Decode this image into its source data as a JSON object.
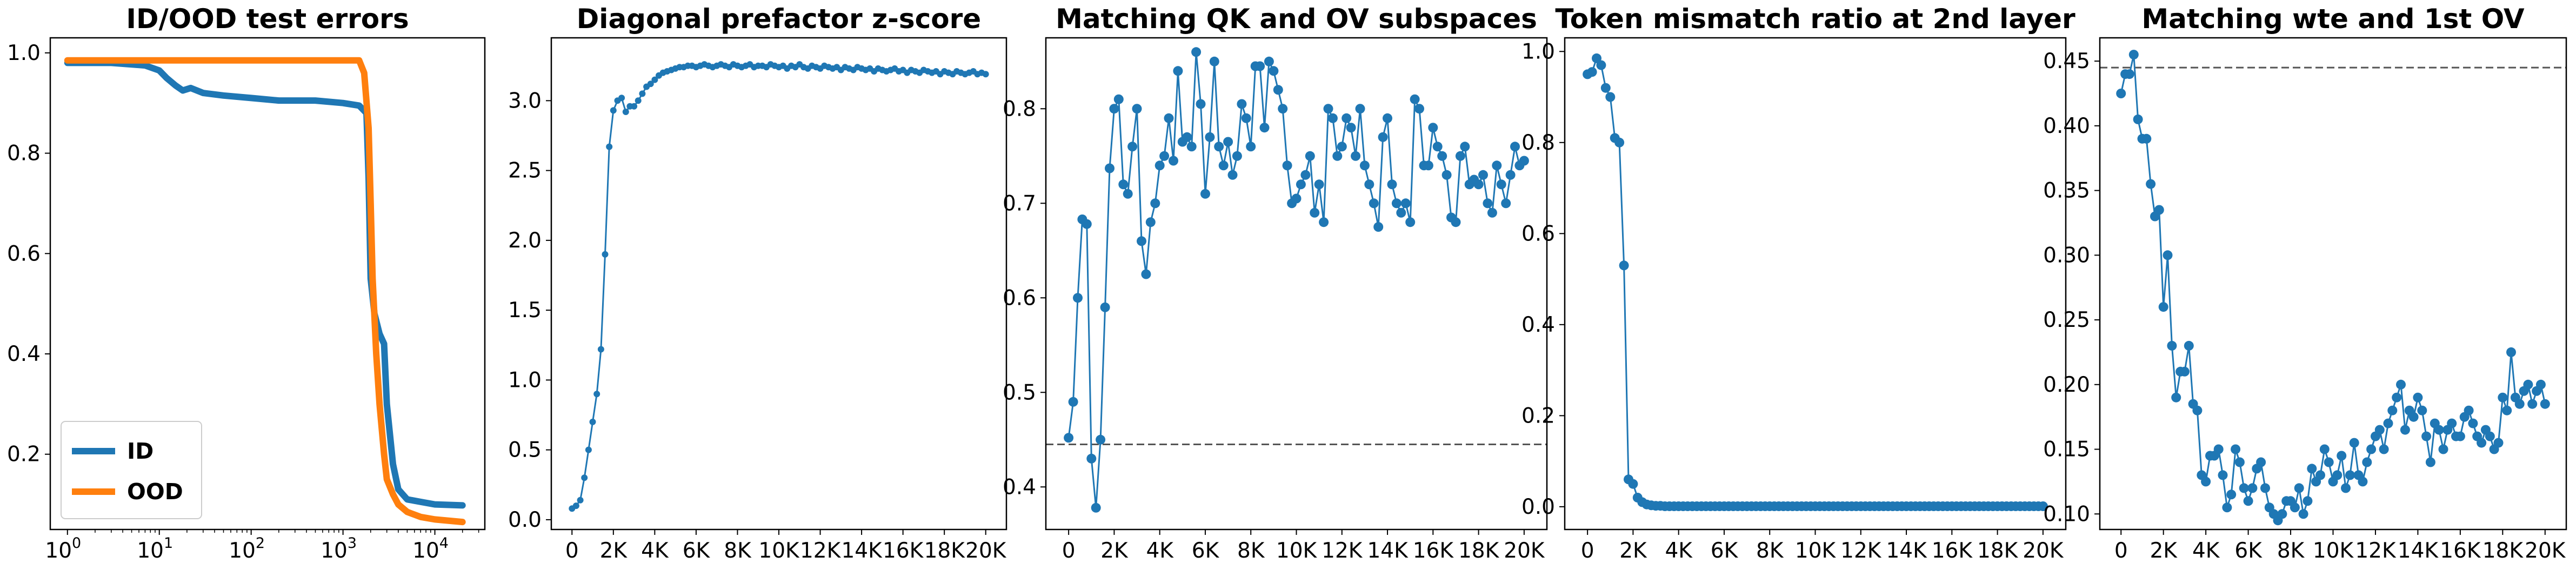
{
  "figure": {
    "background": "#ffffff"
  },
  "colors": {
    "blue": "#1f77b4",
    "orange": "#ff7f0e",
    "ref_line": "#555555"
  },
  "chart_data": [
    {
      "type": "line",
      "title": "ID/OOD test errors",
      "xlabel": "",
      "ylabel": "",
      "xscale": "log",
      "xlim": [
        0.65,
        35000
      ],
      "ylim": [
        0.05,
        1.03
      ],
      "yticks": [
        0.2,
        0.4,
        0.6,
        0.8,
        1.0
      ],
      "ytick_labels": [
        "0.2",
        "0.4",
        "0.6",
        "0.8",
        "1.0"
      ],
      "xticks": [
        1,
        10,
        100,
        1000,
        10000
      ],
      "xtick_labels": [
        "10",
        "10",
        "10",
        "10",
        "10"
      ],
      "xtick_exponents": [
        "0",
        "1",
        "2",
        "3",
        "4"
      ],
      "grid": false,
      "legend": {
        "position": "lower-left",
        "entries": [
          "ID",
          "OOD"
        ]
      },
      "series": [
        {
          "name": "ID",
          "color": "#1f77b4",
          "x": [
            1,
            3,
            7,
            10,
            12,
            15,
            18,
            22,
            30,
            50,
            100,
            200,
            500,
            1000,
            1500,
            1800,
            1900,
            2000,
            2200,
            2500,
            2800,
            3000,
            3500,
            4000,
            5000,
            7000,
            10000,
            20000
          ],
          "y": [
            0.98,
            0.98,
            0.975,
            0.965,
            0.95,
            0.935,
            0.925,
            0.93,
            0.92,
            0.915,
            0.91,
            0.905,
            0.905,
            0.9,
            0.895,
            0.88,
            0.75,
            0.55,
            0.48,
            0.44,
            0.42,
            0.3,
            0.18,
            0.13,
            0.11,
            0.105,
            0.1,
            0.098
          ]
        },
        {
          "name": "OOD",
          "color": "#ff7f0e",
          "x": [
            1,
            10,
            100,
            1000,
            1500,
            1700,
            1900,
            2000,
            2100,
            2300,
            2500,
            2800,
            3000,
            3500,
            4000,
            5000,
            7000,
            10000,
            20000
          ],
          "y": [
            0.985,
            0.985,
            0.985,
            0.985,
            0.985,
            0.96,
            0.85,
            0.7,
            0.55,
            0.4,
            0.3,
            0.2,
            0.15,
            0.12,
            0.1,
            0.085,
            0.075,
            0.07,
            0.065
          ]
        }
      ]
    },
    {
      "type": "line",
      "title": "Diagonal prefactor z-score",
      "xlabel": "",
      "ylabel": "",
      "xlim": [
        -1000,
        21000
      ],
      "ylim": [
        -0.07,
        3.45
      ],
      "yticks": [
        0,
        0.5,
        1.0,
        1.5,
        2.0,
        2.5,
        3.0
      ],
      "ytick_labels": [
        "0.0",
        "0.5",
        "1.0",
        "1.5",
        "2.0",
        "2.5",
        "3.0"
      ],
      "xticks": [
        0,
        2000,
        4000,
        6000,
        8000,
        10000,
        12000,
        14000,
        16000,
        18000,
        20000
      ],
      "xtick_labels": [
        "0",
        "2K",
        "4K",
        "6K",
        "8K",
        "10K",
        "12K",
        "14K",
        "16K",
        "18K",
        "20K"
      ],
      "grid": false,
      "series": [
        {
          "color": "#1f77b4",
          "markers": "small",
          "x_start": 0,
          "x_step": 200,
          "y": [
            0.08,
            0.1,
            0.14,
            0.3,
            0.5,
            0.7,
            0.9,
            1.22,
            1.9,
            2.67,
            2.93,
            3.0,
            3.02,
            2.92,
            2.96,
            2.96,
            3.0,
            3.05,
            3.1,
            3.12,
            3.15,
            3.18,
            3.2,
            3.21,
            3.22,
            3.23,
            3.24,
            3.24,
            3.25,
            3.25,
            3.24,
            3.25,
            3.26,
            3.25,
            3.24,
            3.25,
            3.26,
            3.25,
            3.24,
            3.26,
            3.25,
            3.24,
            3.25,
            3.26,
            3.24,
            3.25,
            3.25,
            3.24,
            3.26,
            3.25,
            3.24,
            3.25,
            3.23,
            3.25,
            3.24,
            3.26,
            3.24,
            3.23,
            3.25,
            3.24,
            3.23,
            3.25,
            3.24,
            3.23,
            3.24,
            3.22,
            3.24,
            3.23,
            3.22,
            3.24,
            3.23,
            3.22,
            3.23,
            3.21,
            3.23,
            3.22,
            3.21,
            3.22,
            3.23,
            3.21,
            3.22,
            3.2,
            3.22,
            3.21,
            3.2,
            3.22,
            3.21,
            3.2,
            3.21,
            3.19,
            3.21,
            3.2,
            3.19,
            3.21,
            3.2,
            3.19,
            3.2,
            3.21,
            3.19,
            3.2,
            3.19
          ]
        }
      ]
    },
    {
      "type": "line",
      "title": "Matching QK and OV subspaces",
      "xlabel": "",
      "ylabel": "",
      "xlim": [
        -1000,
        21000
      ],
      "ylim": [
        0.355,
        0.875
      ],
      "yticks": [
        0.4,
        0.5,
        0.6,
        0.7,
        0.8
      ],
      "ytick_labels": [
        "0.4",
        "0.5",
        "0.6",
        "0.7",
        "0.8"
      ],
      "xticks": [
        0,
        2000,
        4000,
        6000,
        8000,
        10000,
        12000,
        14000,
        16000,
        18000,
        20000
      ],
      "xtick_labels": [
        "0",
        "2K",
        "4K",
        "6K",
        "8K",
        "10K",
        "12K",
        "14K",
        "16K",
        "18K",
        "20K"
      ],
      "reference_line": {
        "y": 0.445,
        "style": "dashed"
      },
      "grid": false,
      "series": [
        {
          "color": "#1f77b4",
          "markers": "large",
          "x_start": 0,
          "x_step": 200,
          "y": [
            0.452,
            0.49,
            0.6,
            0.683,
            0.678,
            0.43,
            0.378,
            0.45,
            0.59,
            0.737,
            0.8,
            0.81,
            0.72,
            0.71,
            0.76,
            0.8,
            0.66,
            0.625,
            0.68,
            0.7,
            0.74,
            0.75,
            0.79,
            0.745,
            0.84,
            0.765,
            0.77,
            0.76,
            0.86,
            0.805,
            0.71,
            0.77,
            0.85,
            0.76,
            0.74,
            0.765,
            0.73,
            0.75,
            0.805,
            0.79,
            0.76,
            0.845,
            0.845,
            0.78,
            0.85,
            0.84,
            0.82,
            0.8,
            0.74,
            0.7,
            0.705,
            0.72,
            0.73,
            0.75,
            0.69,
            0.72,
            0.68,
            0.8,
            0.79,
            0.75,
            0.76,
            0.79,
            0.78,
            0.75,
            0.8,
            0.74,
            0.72,
            0.7,
            0.675,
            0.77,
            0.79,
            0.72,
            0.7,
            0.69,
            0.7,
            0.68,
            0.81,
            0.8,
            0.74,
            0.74,
            0.78,
            0.76,
            0.75,
            0.73,
            0.685,
            0.68,
            0.75,
            0.76,
            0.72,
            0.725,
            0.72,
            0.73,
            0.7,
            0.69,
            0.74,
            0.72,
            0.7,
            0.73,
            0.76,
            0.74,
            0.745
          ]
        }
      ]
    },
    {
      "type": "line",
      "title": "Token mismatch ratio at 2nd layer",
      "xlabel": "",
      "ylabel": "",
      "xlim": [
        -1000,
        21000
      ],
      "ylim": [
        -0.05,
        1.03
      ],
      "yticks": [
        0,
        0.2,
        0.4,
        0.6,
        0.8,
        1.0
      ],
      "ytick_labels": [
        "0.0",
        "0.2",
        "0.4",
        "0.6",
        "0.8",
        "1.0"
      ],
      "xticks": [
        0,
        2000,
        4000,
        6000,
        8000,
        10000,
        12000,
        14000,
        16000,
        18000,
        20000
      ],
      "xtick_labels": [
        "0",
        "2K",
        "4K",
        "6K",
        "8K",
        "10K",
        "12K",
        "14K",
        "16K",
        "18K",
        "20K"
      ],
      "grid": false,
      "series": [
        {
          "color": "#1f77b4",
          "markers": "large",
          "x_start": 0,
          "x_step": 200,
          "y": [
            0.95,
            0.955,
            0.985,
            0.97,
            0.92,
            0.9,
            0.81,
            0.8,
            0.53,
            0.06,
            0.05,
            0.02,
            0.01,
            0.005,
            0.003,
            0.002,
            0.002,
            0.001,
            0.001,
            0.001,
            0.001,
            0.001,
            0.001,
            0.001,
            0.001,
            0.001,
            0.001,
            0.001,
            0.001,
            0.001,
            0.001,
            0.001,
            0.001,
            0.001,
            0.001,
            0.001,
            0.001,
            0.001,
            0.001,
            0.001,
            0.001,
            0.001,
            0.001,
            0.001,
            0.001,
            0.001,
            0.001,
            0.001,
            0.001,
            0.001,
            0.001,
            0.001,
            0.001,
            0.001,
            0.001,
            0.001,
            0.001,
            0.001,
            0.001,
            0.001,
            0.001,
            0.001,
            0.001,
            0.001,
            0.001,
            0.001,
            0.001,
            0.001,
            0.001,
            0.001,
            0.001,
            0.001,
            0.001,
            0.001,
            0.001,
            0.001,
            0.001,
            0.001,
            0.001,
            0.001,
            0.001,
            0.001,
            0.001,
            0.001,
            0.001,
            0.001,
            0.001,
            0.001,
            0.001,
            0.001,
            0.001,
            0.001,
            0.001,
            0.001,
            0.001,
            0.001,
            0.001,
            0.001,
            0.001,
            0.001,
            0.001
          ]
        }
      ]
    },
    {
      "type": "line",
      "title": "Matching wte and 1st OV",
      "xlabel": "",
      "ylabel": "",
      "xlim": [
        -1000,
        21000
      ],
      "ylim": [
        0.088,
        0.468
      ],
      "yticks": [
        0.1,
        0.15,
        0.2,
        0.25,
        0.3,
        0.35,
        0.4,
        0.45
      ],
      "ytick_labels": [
        "0.10",
        "0.15",
        "0.20",
        "0.25",
        "0.30",
        "0.35",
        "0.40",
        "0.45"
      ],
      "xticks": [
        0,
        2000,
        4000,
        6000,
        8000,
        10000,
        12000,
        14000,
        16000,
        18000,
        20000
      ],
      "xtick_labels": [
        "0",
        "2K",
        "4K",
        "6K",
        "8K",
        "10K",
        "12K",
        "14K",
        "16K",
        "18K",
        "20K"
      ],
      "reference_line": {
        "y": 0.445,
        "style": "dashed"
      },
      "grid": false,
      "series": [
        {
          "color": "#1f77b4",
          "markers": "large",
          "x_start": 0,
          "x_step": 200,
          "y": [
            0.425,
            0.44,
            0.44,
            0.455,
            0.405,
            0.39,
            0.39,
            0.355,
            0.33,
            0.335,
            0.26,
            0.3,
            0.23,
            0.19,
            0.21,
            0.21,
            0.23,
            0.185,
            0.18,
            0.13,
            0.125,
            0.145,
            0.145,
            0.15,
            0.13,
            0.105,
            0.115,
            0.15,
            0.14,
            0.12,
            0.11,
            0.12,
            0.135,
            0.14,
            0.12,
            0.105,
            0.1,
            0.095,
            0.1,
            0.11,
            0.11,
            0.105,
            0.12,
            0.1,
            0.11,
            0.135,
            0.125,
            0.13,
            0.15,
            0.14,
            0.125,
            0.13,
            0.145,
            0.12,
            0.13,
            0.155,
            0.13,
            0.125,
            0.14,
            0.15,
            0.16,
            0.165,
            0.15,
            0.17,
            0.18,
            0.19,
            0.2,
            0.165,
            0.18,
            0.175,
            0.19,
            0.18,
            0.16,
            0.14,
            0.17,
            0.165,
            0.15,
            0.165,
            0.17,
            0.16,
            0.16,
            0.175,
            0.18,
            0.17,
            0.16,
            0.155,
            0.165,
            0.16,
            0.15,
            0.155,
            0.19,
            0.18,
            0.225,
            0.19,
            0.185,
            0.195,
            0.2,
            0.185,
            0.195,
            0.2,
            0.185
          ]
        }
      ]
    }
  ]
}
